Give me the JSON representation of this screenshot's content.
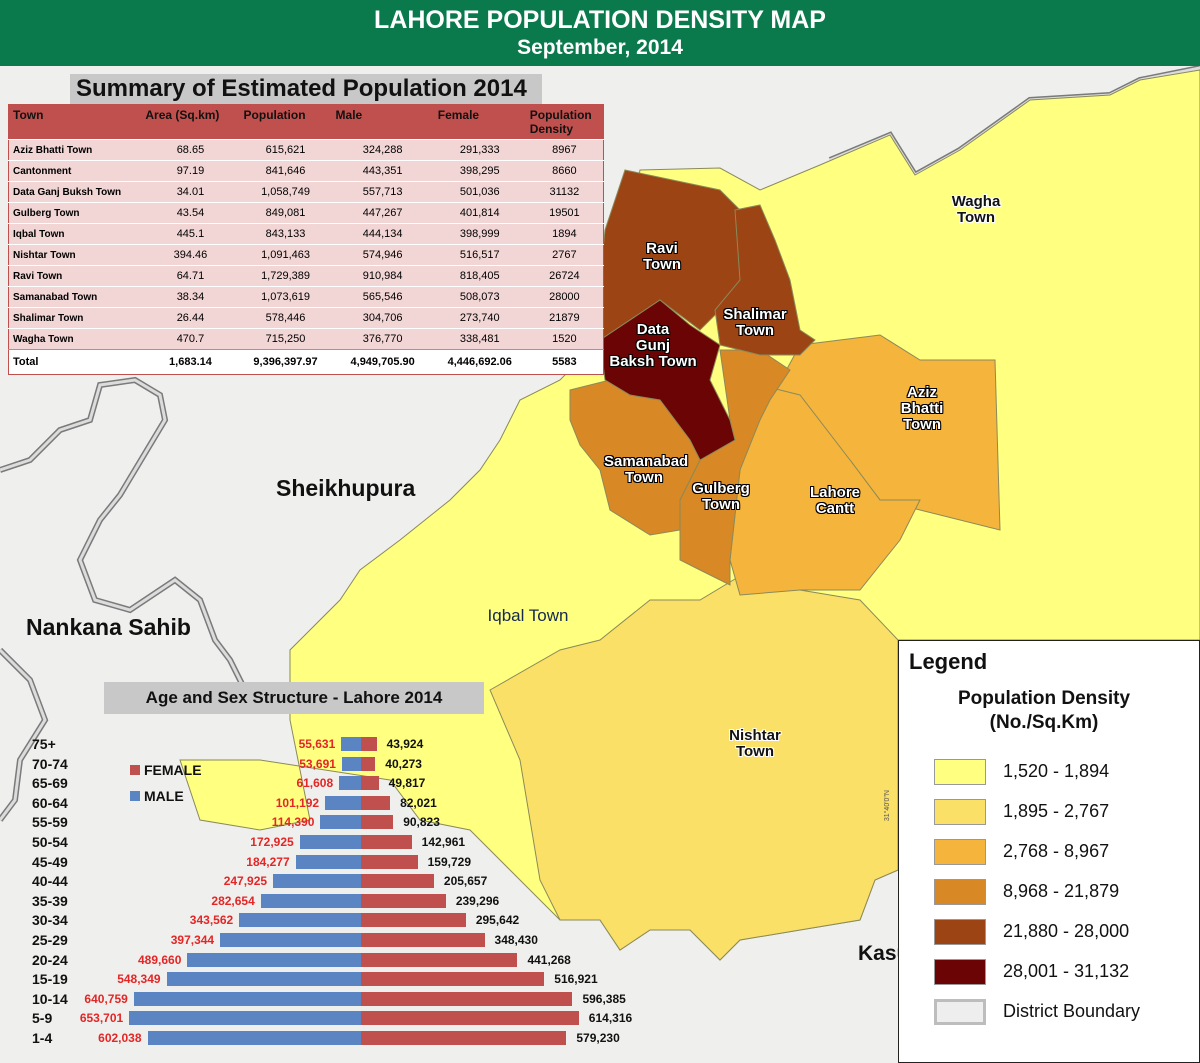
{
  "header": {
    "title": "LAHORE POPULATION DENSITY MAP",
    "subtitle": "September, 2014"
  },
  "summary": {
    "title": "Summary of Estimated Population 2014",
    "columns": [
      "Town",
      "Area (Sq.km)",
      "Population",
      "Male",
      "Female",
      "Population Density"
    ],
    "rows": [
      [
        "Aziz Bhatti Town",
        "68.65",
        "615,621",
        "324,288",
        "291,333",
        "8967"
      ],
      [
        "Cantonment",
        "97.19",
        "841,646",
        "443,351",
        "398,295",
        "8660"
      ],
      [
        "Data Ganj Buksh Town",
        "34.01",
        "1,058,749",
        "557,713",
        "501,036",
        "31132"
      ],
      [
        "Gulberg Town",
        "43.54",
        "849,081",
        "447,267",
        "401,814",
        "19501"
      ],
      [
        "Iqbal Town",
        "445.1",
        "843,133",
        "444,134",
        "398,999",
        "1894"
      ],
      [
        "Nishtar Town",
        "394.46",
        "1,091,463",
        "574,946",
        "516,517",
        "2767"
      ],
      [
        "Ravi Town",
        "64.71",
        "1,729,389",
        "910,984",
        "818,405",
        "26724"
      ],
      [
        "Samanabad Town",
        "38.34",
        "1,073,619",
        "565,546",
        "508,073",
        "28000"
      ],
      [
        "Shalimar Town",
        "26.44",
        "578,446",
        "304,706",
        "273,740",
        "21879"
      ],
      [
        "Wagha Town",
        "470.7",
        "715,250",
        "376,770",
        "338,481",
        "1520"
      ]
    ],
    "total": [
      "Total",
      "1,683.14",
      "9,396,397.97",
      "4,949,705.90",
      "4,446,692.06",
      "5583"
    ]
  },
  "map": {
    "towns": {
      "ravi": "Ravi Town",
      "shalimar": "Shalimar Town",
      "data_gunj": "Data Gunj Baksh Town",
      "wagha": "Wagha Town",
      "aziz": "Aziz Bhatti Town",
      "samanabad": "Samanabad Town",
      "gulberg": "Gulberg Town",
      "cantt": "Lahore Cantt",
      "iqbal": "Iqbal Town",
      "nishtar": "Nishtar Town"
    },
    "districts": {
      "sheikhupura": "Sheikhupura",
      "nankana": "Nankana Sahib",
      "kasur": "Kasur"
    },
    "coordinate_label": "31°40'0\"N",
    "colors": {
      "c1": "#ffff80",
      "c2": "#fbe067",
      "c3": "#f5b43c",
      "c4": "#d98826",
      "c5": "#9c4414",
      "c6": "#6b0404",
      "district_bg": "#f0f0ee",
      "boundary": "#7a7a7a"
    }
  },
  "legend": {
    "title": "Legend",
    "subtitle_line1": "Population Density",
    "subtitle_line2": "(No./Sq.Km)",
    "items": [
      {
        "label": "1,520 - 1,894",
        "color": "#ffff80"
      },
      {
        "label": "1,895 - 2,767",
        "color": "#fbe067"
      },
      {
        "label": "2,768 - 8,967",
        "color": "#f5b43c"
      },
      {
        "label": "8,968 - 21,879",
        "color": "#d98826"
      },
      {
        "label": "21,880 - 28,000",
        "color": "#9c4414"
      },
      {
        "label": "28,001 - 31,132",
        "color": "#6b0404"
      },
      {
        "label": "District Boundary",
        "color": "#eeeeee"
      }
    ]
  },
  "chart_data": {
    "type": "bar",
    "title": "Age and Sex Structure - Lahore 2014",
    "categories": [
      "75+",
      "70-74",
      "65-69",
      "60-64",
      "55-59",
      "50-54",
      "45-49",
      "40-44",
      "35-39",
      "30-34",
      "25-29",
      "20-24",
      "15-19",
      "10-14",
      "5-9",
      "1-4"
    ],
    "series": [
      {
        "name": "FEMALE",
        "color": "#c0504d",
        "values": [
          43924,
          40273,
          49817,
          82021,
          90823,
          142961,
          159729,
          205657,
          239296,
          295642,
          348430,
          441268,
          516921,
          596385,
          614316,
          579230
        ],
        "labels": [
          "43,924",
          "40,273",
          "49,817",
          "82,021",
          "90,823",
          "142,961",
          "159,729",
          "205,657",
          "239,296",
          "295,642",
          "348,430",
          "441,268",
          "516,921",
          "596,385",
          "614,316",
          "579,230"
        ]
      },
      {
        "name": "MALE",
        "color": "#5a84c2",
        "values": [
          55631,
          53691,
          61608,
          101192,
          114390,
          172925,
          184277,
          247925,
          282654,
          343562,
          397344,
          489660,
          548349,
          640759,
          653701,
          602038
        ],
        "labels": [
          "55,631",
          "53,691",
          "61,608",
          "101,192",
          "114,390",
          "172,925",
          "184,277",
          "247,925",
          "282,654",
          "343,562",
          "397,344",
          "489,660",
          "548,349",
          "640,759",
          "653,701",
          "602,038"
        ]
      }
    ]
  }
}
